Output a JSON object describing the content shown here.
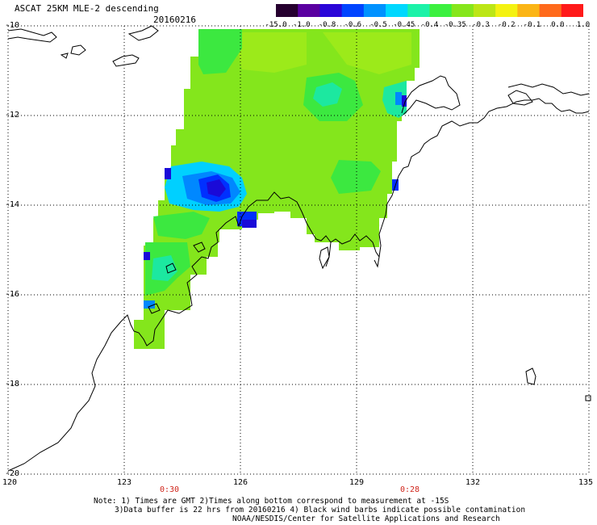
{
  "header": {
    "title": "ASCAT 25KM MLE-2 descending",
    "date": "20160216"
  },
  "colorbar": {
    "labels": [
      "-15.0",
      "-1.0",
      "-0.8",
      "-0.6",
      "-0.5",
      "-0.45",
      "-0.4",
      "-0.35",
      "-0.3",
      "-0.2",
      "-0.1",
      "0.0",
      "1.0"
    ],
    "colors": [
      "#26002f",
      "#5a00a0",
      "#2a06d8",
      "#0044ff",
      "#0092ff",
      "#00d8ff",
      "#1cf2a8",
      "#3cf040",
      "#86e61c",
      "#bce616",
      "#f4f212",
      "#fbb516",
      "#ff6a1c",
      "#ff1a1a"
    ]
  },
  "axes": {
    "lat_labels": [
      "-10",
      "-12",
      "-14",
      "-16",
      "-18",
      "-20"
    ],
    "lon_labels": [
      "120",
      "123",
      "126",
      "129",
      "132",
      "135"
    ],
    "time_labels": [
      "0:30",
      "0:28"
    ]
  },
  "notes": {
    "line1": "Note: 1) Times are GMT 2)Times along bottom correspond to measurement at -15S",
    "line2": "3)Data buffer is 22 hrs from 20160216 4) Black wind barbs indicate possible contamination",
    "line3": "NOAA/NESDIS/Center for Satellite Applications and Research"
  },
  "map_colors": {
    "base": "#84e61c",
    "light": "#9cea1a",
    "green": "#3ce840",
    "teal": "#1ce8a0",
    "cyan": "#00d0ff",
    "blue": "#0088ff",
    "deep_blue": "#0030ff",
    "navy": "#1a0ad8"
  }
}
